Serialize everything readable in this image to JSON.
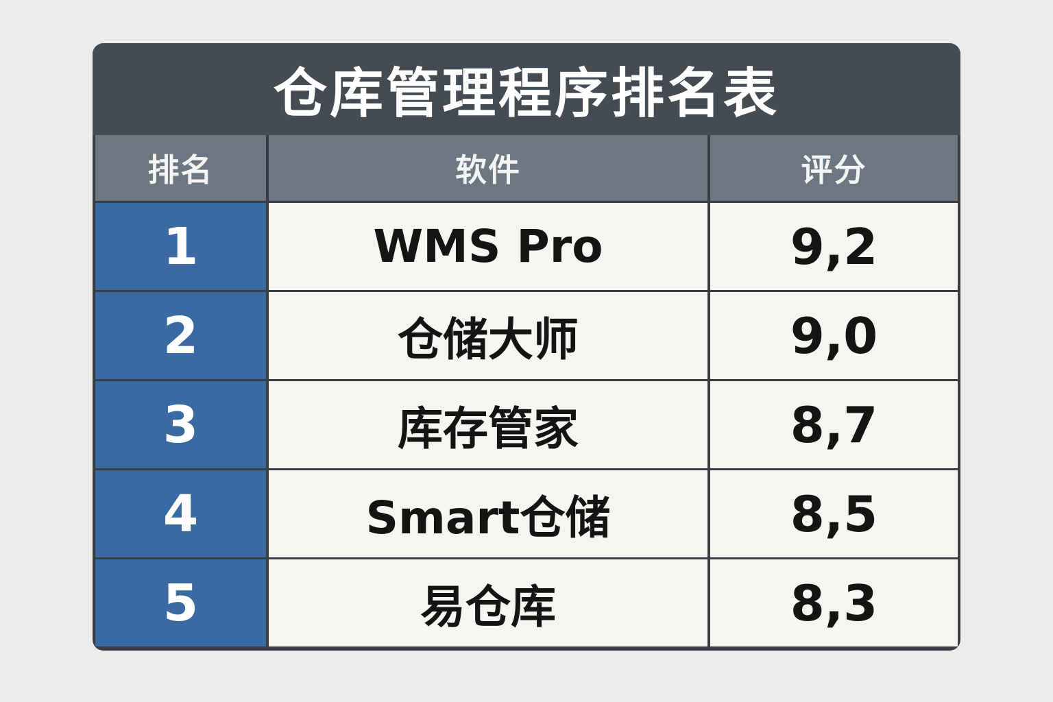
{
  "title": "仓库管理程序排名表",
  "columns": {
    "rank": "排名",
    "software": "软件",
    "score": "评分"
  },
  "rows": [
    {
      "rank": "1",
      "software": "WMS Pro",
      "score": "9,2"
    },
    {
      "rank": "2",
      "software": "仓储大师",
      "score": "9,0"
    },
    {
      "rank": "3",
      "software": "库存管家",
      "score": "8,7"
    },
    {
      "rank": "4",
      "software": "Smart仓储",
      "score": "8,5"
    },
    {
      "rank": "5",
      "software": "易仓库",
      "score": "8,3"
    }
  ],
  "colors": {
    "title_bg": "#454b52",
    "header_bg": "#6c7782",
    "rank_bg": "#3a6aa1",
    "cell_bg": "#f6f5f1",
    "border": "#3a3e43",
    "page_bg": "#ececea"
  }
}
